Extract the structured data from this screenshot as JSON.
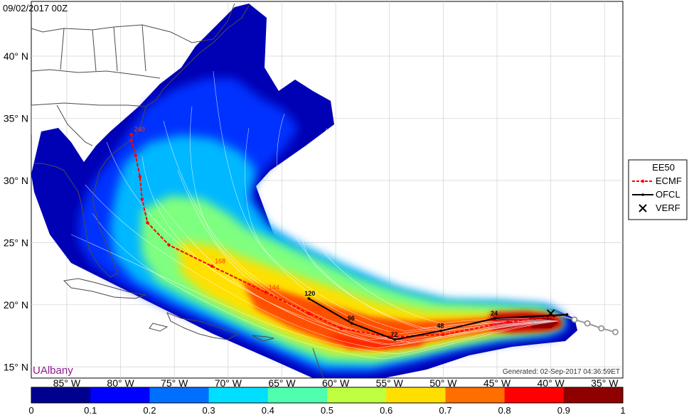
{
  "map": {
    "datetime": "09/02/2017 00Z",
    "generated": "Generated: 02-Sep-2017 04:36:59ET",
    "watermark": "UAlbany",
    "lat_labels": [
      {
        "lat": 40,
        "text": "40° N"
      },
      {
        "lat": 35,
        "text": "35° N"
      },
      {
        "lat": 30,
        "text": "30° N"
      },
      {
        "lat": 25,
        "text": "25° N"
      },
      {
        "lat": 20,
        "text": "20° N"
      },
      {
        "lat": 15,
        "text": "15° N"
      }
    ],
    "lon_labels": [
      {
        "lon": -85,
        "text": "85° W"
      },
      {
        "lon": -80,
        "text": "80° W"
      },
      {
        "lon": -75,
        "text": "75° W"
      },
      {
        "lon": -70,
        "text": "70° W"
      },
      {
        "lon": -65,
        "text": "65° W"
      },
      {
        "lon": -60,
        "text": "60° W"
      },
      {
        "lon": -55,
        "text": "55° W"
      },
      {
        "lon": -50,
        "text": "50° W"
      },
      {
        "lon": -45,
        "text": "45° W"
      },
      {
        "lon": -40,
        "text": "40° W"
      },
      {
        "lon": -35,
        "text": "35° W"
      }
    ],
    "ecmf_track": [
      {
        "lon": -38.5,
        "lat": 19.2
      },
      {
        "lon": -44,
        "lat": 18.6
      },
      {
        "lon": -50,
        "lat": 17.6
      },
      {
        "lon": -55,
        "lat": 17.4,
        "label": "96"
      },
      {
        "lon": -59.5,
        "lat": 18.1
      },
      {
        "lon": -62.5,
        "lat": 19.3,
        "label": "120"
      },
      {
        "lon": -66.5,
        "lat": 21.0,
        "label": "144"
      },
      {
        "lon": -71.5,
        "lat": 23.1,
        "label": "168"
      },
      {
        "lon": -75.5,
        "lat": 24.8
      },
      {
        "lon": -77.5,
        "lat": 26.6
      },
      {
        "lon": -78.0,
        "lat": 28.5
      },
      {
        "lon": -78.2,
        "lat": 30.3
      },
      {
        "lon": -78.6,
        "lat": 32.0
      },
      {
        "lon": -79.0,
        "lat": 33.2
      },
      {
        "lon": -79.0,
        "lat": 33.7,
        "label": "240"
      }
    ],
    "ofcl_track": [
      {
        "lon": -38.5,
        "lat": 19.2
      },
      {
        "lon": -45.2,
        "lat": 18.9,
        "label": "24"
      },
      {
        "lon": -50.2,
        "lat": 17.9,
        "label": "48"
      },
      {
        "lon": -54.5,
        "lat": 17.2,
        "label": "72"
      },
      {
        "lon": -58.5,
        "lat": 18.5,
        "label": "96"
      },
      {
        "lon": -62.5,
        "lat": 20.5,
        "label": "120"
      }
    ],
    "verf_track": [
      {
        "lon": -40.0,
        "lat": 19.3
      },
      {
        "lon": -37.8,
        "lat": 18.8
      },
      {
        "lon": -36.6,
        "lat": 18.5
      },
      {
        "lon": -35.3,
        "lat": 18.1
      },
      {
        "lon": -34.0,
        "lat": 17.8
      }
    ]
  },
  "legend": {
    "items": [
      {
        "label": "EE50",
        "style": "none"
      },
      {
        "label": "ECMF",
        "style": "ecmf"
      },
      {
        "label": "OFCL",
        "style": "ofcl"
      },
      {
        "label": "VERF",
        "style": "verf"
      }
    ],
    "colors": {
      "ecmf": "#ff0000",
      "ofcl": "#000000",
      "verf": "#000000"
    }
  },
  "colorbar": {
    "ticks": [
      "0",
      "0.1",
      "0.2",
      "0.3",
      "0.4",
      "0.5",
      "0.6",
      "0.7",
      "0.8",
      "0.9",
      "1"
    ],
    "colors": [
      "#00008f",
      "#0000ff",
      "#006fff",
      "#00dfff",
      "#4fffaf",
      "#bfff3f",
      "#ffdf00",
      "#ff6f00",
      "#ff0000",
      "#8f0000"
    ]
  }
}
